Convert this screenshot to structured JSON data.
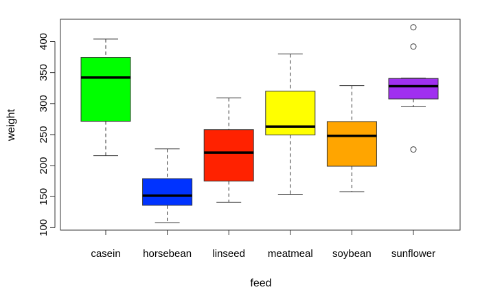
{
  "chart_data": {
    "type": "boxplot",
    "title": "",
    "xlabel": "feed",
    "ylabel": "weight",
    "ylim": [
      96,
      436
    ],
    "yticks": [
      100,
      150,
      200,
      250,
      300,
      350,
      400
    ],
    "categories": [
      "casein",
      "horsebean",
      "linseed",
      "meatmeal",
      "soybean",
      "sunflower"
    ],
    "colors": [
      "#00ff00",
      "#0033ff",
      "#ff2200",
      "#ffff00",
      "#ffa500",
      "#a030f0"
    ],
    "boxes": [
      {
        "min": 216,
        "q1": 271.5,
        "median": 342,
        "q3": 374.5,
        "max": 404,
        "outliers": []
      },
      {
        "min": 108,
        "q1": 136,
        "median": 151.5,
        "q3": 179,
        "max": 227,
        "outliers": []
      },
      {
        "min": 141,
        "q1": 175,
        "median": 221,
        "q3": 258,
        "max": 309,
        "outliers": []
      },
      {
        "min": 153,
        "q1": 249.5,
        "median": 263,
        "q3": 320,
        "max": 380,
        "outliers": []
      },
      {
        "min": 158,
        "q1": 199,
        "median": 248,
        "q3": 271,
        "max": 329,
        "outliers": []
      },
      {
        "min": 295,
        "q1": 307.5,
        "median": 328,
        "q3": 340.5,
        "max": 341,
        "outliers": [
          226,
          392,
          423
        ]
      }
    ]
  }
}
